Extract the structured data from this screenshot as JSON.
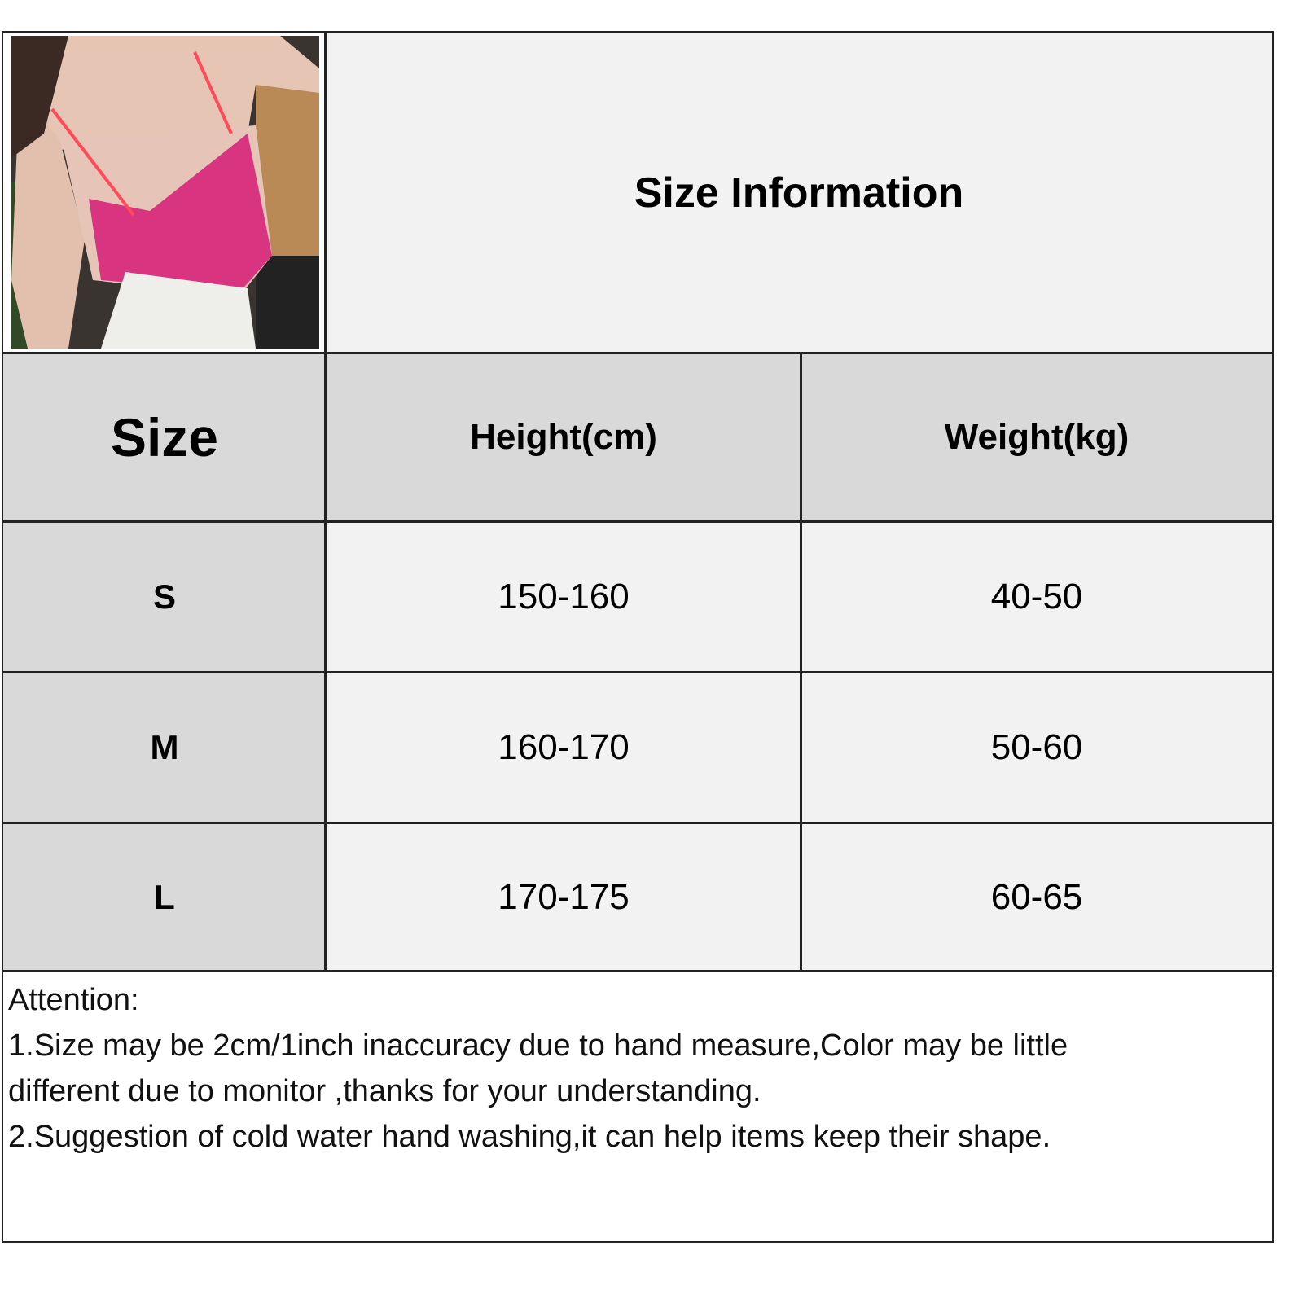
{
  "title": "Size Information",
  "photo": {
    "description_icon": "product-photo"
  },
  "table": {
    "headers": [
      "Size",
      "Height(cm)",
      "Weight(kg)"
    ],
    "rows": [
      {
        "size": "S",
        "height": "150-160",
        "weight": "40-50"
      },
      {
        "size": "M",
        "height": "160-170",
        "weight": "50-60"
      },
      {
        "size": "L",
        "height": "170-175",
        "weight": "60-65"
      }
    ]
  },
  "attention": {
    "heading": "Attention:",
    "line1": "1.Size may be 2cm/1inch inaccuracy due to hand measure,Color may be little",
    "line2": "different due to monitor ,thanks for your understanding.",
    "line3": "2.Suggestion of cold water hand washing,it can help items keep their shape."
  },
  "colors": {
    "header_bg": "#d9d9d9",
    "cell_bg": "#f2f2f2",
    "border": "#222222"
  }
}
